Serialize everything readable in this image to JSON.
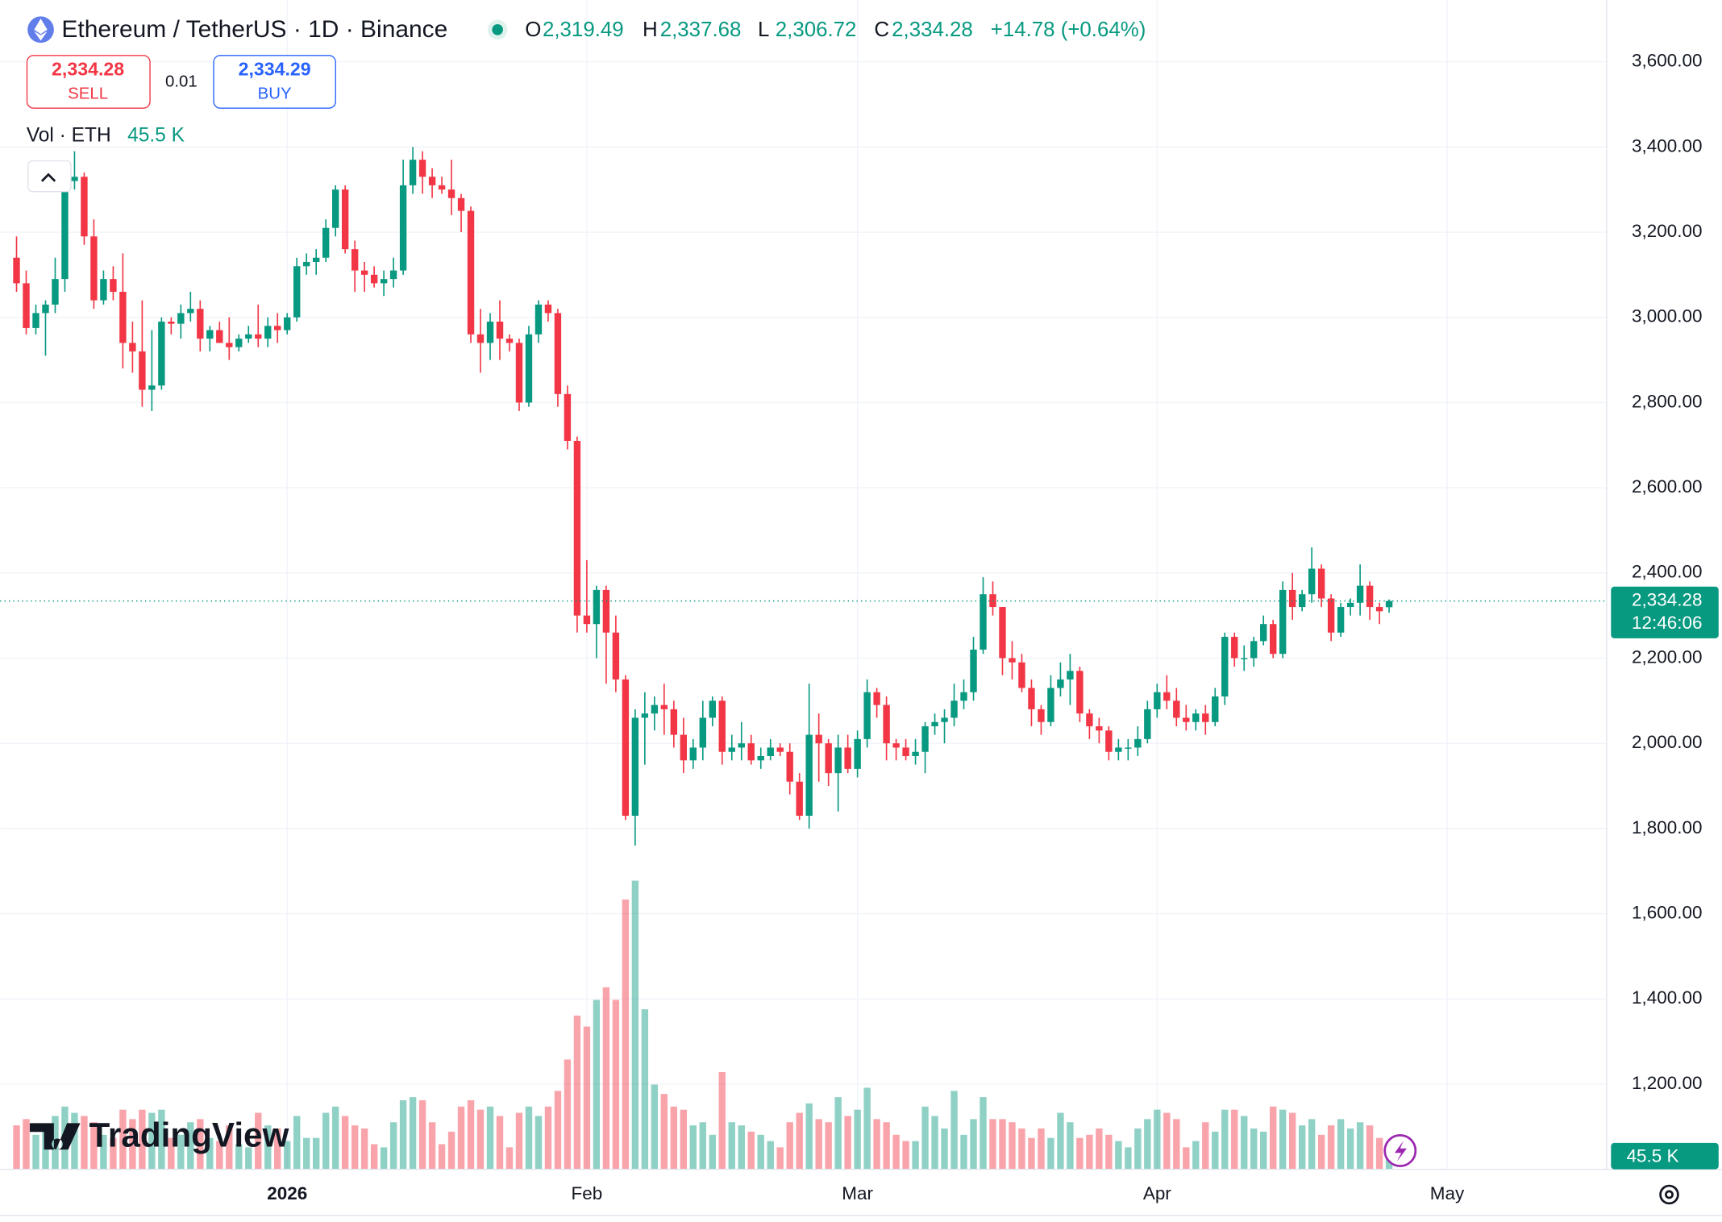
{
  "header": {
    "symbol": "Ethereum / TetherUS · 1D · Binance",
    "ohlc": [
      {
        "label": "O",
        "value": "2,319.49"
      },
      {
        "label": "H",
        "value": "2,337.68"
      },
      {
        "label": "L",
        "value": "2,306.72"
      },
      {
        "label": "C",
        "value": "2,334.28"
      }
    ],
    "change": "+14.78 (+0.64%)",
    "sell_price": "2,334.28",
    "sell": "SELL",
    "quantity": "0.01",
    "buy_price": "2,334.29",
    "buy": "BUY",
    "volume_legend": "Vol · ETH",
    "volume_value": "45.5 K",
    "logo": "TradingView"
  },
  "chart_data": {
    "type": "candlestick",
    "open": [
      3140,
      3080,
      2975,
      3010,
      3030,
      3090,
      3320,
      3330,
      3190,
      3040,
      3090,
      3060,
      2940,
      2920,
      2830,
      2840,
      2990,
      2985,
      3010,
      3020,
      2950,
      2970,
      2940,
      2930,
      2950,
      2960,
      2950,
      2980,
      2970,
      3000,
      3120,
      3130,
      3140,
      3210,
      3300,
      3160,
      3110,
      3100,
      3080,
      3090,
      3110,
      3310,
      3370,
      3330,
      3310,
      3300,
      3280,
      3250,
      2960,
      2940,
      2990,
      2950,
      2940,
      2800,
      2960,
      3030,
      3010,
      2820,
      2710,
      2300,
      2280,
      2360,
      2260,
      2150,
      1830,
      2060,
      2070,
      2090,
      2080,
      2020,
      1960,
      1990,
      2060,
      2100,
      1980,
      1990,
      2000,
      1960,
      1970,
      1990,
      1980,
      1910,
      1830,
      2020,
      2000,
      1930,
      1990,
      1940,
      2010,
      2120,
      2090,
      2000,
      1990,
      1970,
      1980,
      2040,
      2050,
      2060,
      2100,
      2120,
      2220,
      2350,
      2320,
      2200,
      2190,
      2130,
      2080,
      2050,
      2130,
      2150,
      2170,
      2070,
      2040,
      2030,
      1980,
      1990,
      1990,
      2010,
      2080,
      2120,
      2100,
      2060,
      2050,
      2070,
      2050,
      2110,
      2250,
      2200,
      2200,
      2240,
      2280,
      2210,
      2360,
      2320,
      2350,
      2410,
      2340,
      2260,
      2320,
      2330,
      2370,
      2320,
      2319.49
    ],
    "high": [
      3190,
      3110,
      3030,
      3040,
      3140,
      3340,
      3390,
      3340,
      3230,
      3110,
      3120,
      3150,
      2990,
      3040,
      2970,
      3000,
      3000,
      3030,
      3060,
      3040,
      2980,
      2990,
      3000,
      2960,
      2980,
      3030,
      3000,
      3010,
      3010,
      3140,
      3150,
      3160,
      3230,
      3310,
      3310,
      3180,
      3130,
      3120,
      3110,
      3140,
      3370,
      3400,
      3390,
      3350,
      3330,
      3370,
      3290,
      3260,
      3020,
      3010,
      3040,
      2960,
      2950,
      2980,
      3040,
      3040,
      3020,
      2840,
      2720,
      2430,
      2370,
      2370,
      2300,
      2160,
      2080,
      2120,
      2110,
      2140,
      2100,
      2060,
      2010,
      2100,
      2110,
      2110,
      2020,
      2050,
      2020,
      1990,
      2010,
      2000,
      2000,
      1930,
      2140,
      2070,
      2010,
      2020,
      2020,
      2030,
      2150,
      2130,
      2110,
      2010,
      2010,
      2010,
      2050,
      2070,
      2080,
      2140,
      2150,
      2250,
      2390,
      2380,
      2320,
      2240,
      2210,
      2150,
      2090,
      2160,
      2190,
      2210,
      2180,
      2080,
      2060,
      2040,
      2010,
      2010,
      2040,
      2100,
      2140,
      2160,
      2130,
      2090,
      2080,
      2090,
      2130,
      2260,
      2260,
      2230,
      2250,
      2300,
      2290,
      2380,
      2400,
      2360,
      2460,
      2420,
      2350,
      2330,
      2340,
      2420,
      2380,
      2330,
      2337.68
    ],
    "low": [
      3060,
      2960,
      2960,
      2910,
      3010,
      3060,
      3300,
      3170,
      3020,
      3030,
      3040,
      2880,
      2870,
      2790,
      2780,
      2830,
      2960,
      2950,
      2990,
      2920,
      2920,
      2940,
      2900,
      2920,
      2940,
      2930,
      2930,
      2940,
      2960,
      2990,
      3100,
      3100,
      3130,
      3190,
      3150,
      3060,
      3060,
      3070,
      3050,
      3070,
      3100,
      3290,
      3290,
      3280,
      3290,
      3240,
      3200,
      2940,
      2870,
      2900,
      2900,
      2920,
      2780,
      2790,
      2940,
      2990,
      2790,
      2690,
      2260,
      2260,
      2200,
      2140,
      2120,
      1820,
      1760,
      1950,
      2030,
      2020,
      1990,
      1930,
      1940,
      1960,
      2040,
      1950,
      1960,
      1960,
      1950,
      1940,
      1960,
      1970,
      1880,
      1820,
      1800,
      1910,
      1900,
      1840,
      1930,
      1920,
      1990,
      2060,
      1960,
      1960,
      1960,
      1950,
      1930,
      2020,
      2000,
      2040,
      2080,
      2100,
      2210,
      2300,
      2160,
      2150,
      2120,
      2040,
      2020,
      2040,
      2110,
      2090,
      2050,
      2010,
      2000,
      1960,
      1960,
      1960,
      1970,
      2000,
      2060,
      2080,
      2040,
      2030,
      2030,
      2020,
      2040,
      2090,
      2180,
      2170,
      2180,
      2230,
      2200,
      2200,
      2290,
      2310,
      2330,
      2320,
      2240,
      2250,
      2300,
      2300,
      2290,
      2280,
      2306.72
    ],
    "close": [
      3080,
      2975,
      3010,
      3030,
      3090,
      3320,
      3330,
      3190,
      3040,
      3090,
      3060,
      2940,
      2920,
      2830,
      2840,
      2990,
      2985,
      3010,
      3020,
      2950,
      2970,
      2940,
      2930,
      2950,
      2960,
      2950,
      2980,
      2970,
      3000,
      3120,
      3130,
      3140,
      3210,
      3300,
      3160,
      3110,
      3100,
      3080,
      3090,
      3110,
      3310,
      3370,
      3330,
      3310,
      3300,
      3280,
      3250,
      2960,
      2940,
      2990,
      2950,
      2940,
      2800,
      2960,
      3030,
      3010,
      2820,
      2710,
      2300,
      2280,
      2360,
      2260,
      2150,
      1830,
      2060,
      2070,
      2090,
      2080,
      2020,
      1960,
      1990,
      2060,
      2100,
      1980,
      1990,
      2000,
      1960,
      1970,
      1990,
      1980,
      1910,
      1830,
      2020,
      2000,
      1930,
      1990,
      1940,
      2010,
      2120,
      2090,
      2000,
      1990,
      1970,
      1980,
      2040,
      2050,
      2060,
      2100,
      2120,
      2220,
      2350,
      2320,
      2200,
      2190,
      2130,
      2080,
      2050,
      2130,
      2150,
      2170,
      2070,
      2040,
      2030,
      1980,
      1990,
      1990,
      2010,
      2080,
      2120,
      2100,
      2060,
      2050,
      2070,
      2050,
      2110,
      2250,
      2200,
      2200,
      2240,
      2280,
      2210,
      2360,
      2320,
      2350,
      2410,
      2340,
      2260,
      2320,
      2330,
      2370,
      2320,
      2310,
      2334.28
    ],
    "volume": [
      140,
      160,
      110,
      130,
      170,
      200,
      180,
      170,
      150,
      110,
      100,
      190,
      160,
      190,
      180,
      190,
      100,
      110,
      150,
      160,
      100,
      90,
      140,
      80,
      70,
      180,
      140,
      130,
      90,
      170,
      100,
      100,
      180,
      200,
      170,
      140,
      130,
      80,
      70,
      150,
      220,
      230,
      220,
      150,
      80,
      120,
      200,
      220,
      190,
      200,
      170,
      70,
      180,
      200,
      170,
      200,
      250,
      350,
      490,
      455,
      540,
      580,
      540,
      860,
      920,
      510,
      270,
      240,
      200,
      190,
      140,
      150,
      110,
      310,
      150,
      140,
      120,
      110,
      90,
      70,
      150,
      180,
      210,
      160,
      150,
      230,
      170,
      190,
      260,
      160,
      150,
      110,
      90,
      90,
      200,
      170,
      130,
      250,
      110,
      160,
      230,
      160,
      160,
      150,
      130,
      100,
      130,
      100,
      180,
      150,
      100,
      110,
      130,
      110,
      90,
      70,
      130,
      160,
      190,
      180,
      160,
      70,
      90,
      150,
      120,
      190,
      190,
      170,
      130,
      120,
      200,
      190,
      180,
      140,
      160,
      110,
      140,
      160,
      130,
      150,
      140,
      100,
      45.5
    ],
    "xlim": [
      -1.7,
      164.5
    ],
    "xticks": [
      {
        "value": 28,
        "label": "2026"
      },
      {
        "value": 59,
        "label": "Feb"
      },
      {
        "value": 87,
        "label": "Mar"
      },
      {
        "value": 118,
        "label": "Apr"
      },
      {
        "value": 148,
        "label": "May"
      }
    ],
    "ylim": [
      1000,
      3745
    ],
    "yticks": [
      {
        "value": 1200,
        "label": "1,200.00"
      },
      {
        "value": 1400,
        "label": "1,400.00"
      },
      {
        "value": 1600,
        "label": "1,600.00"
      },
      {
        "value": 1800,
        "label": "1,800.00"
      },
      {
        "value": 2000,
        "label": "2,000.00"
      },
      {
        "value": 2200,
        "label": "2,200.00"
      },
      {
        "value": 2400,
        "label": "2,400.00"
      },
      {
        "value": 2600,
        "label": "2,600.00"
      },
      {
        "value": 2800,
        "label": "2,800.00"
      },
      {
        "value": 3000,
        "label": "3,000.00"
      },
      {
        "value": 3200,
        "label": "3,200.00"
      },
      {
        "value": 3400,
        "label": "3,400.00"
      },
      {
        "value": 3600,
        "label": "3,600.00"
      }
    ],
    "y2lim": [
      0,
      3727
    ],
    "last_price": {
      "value": 2334.28,
      "label": "2,334.28"
    },
    "countdown": "12:46:06",
    "up_color": "#089981",
    "down_color": "#f23645",
    "grid": true
  }
}
